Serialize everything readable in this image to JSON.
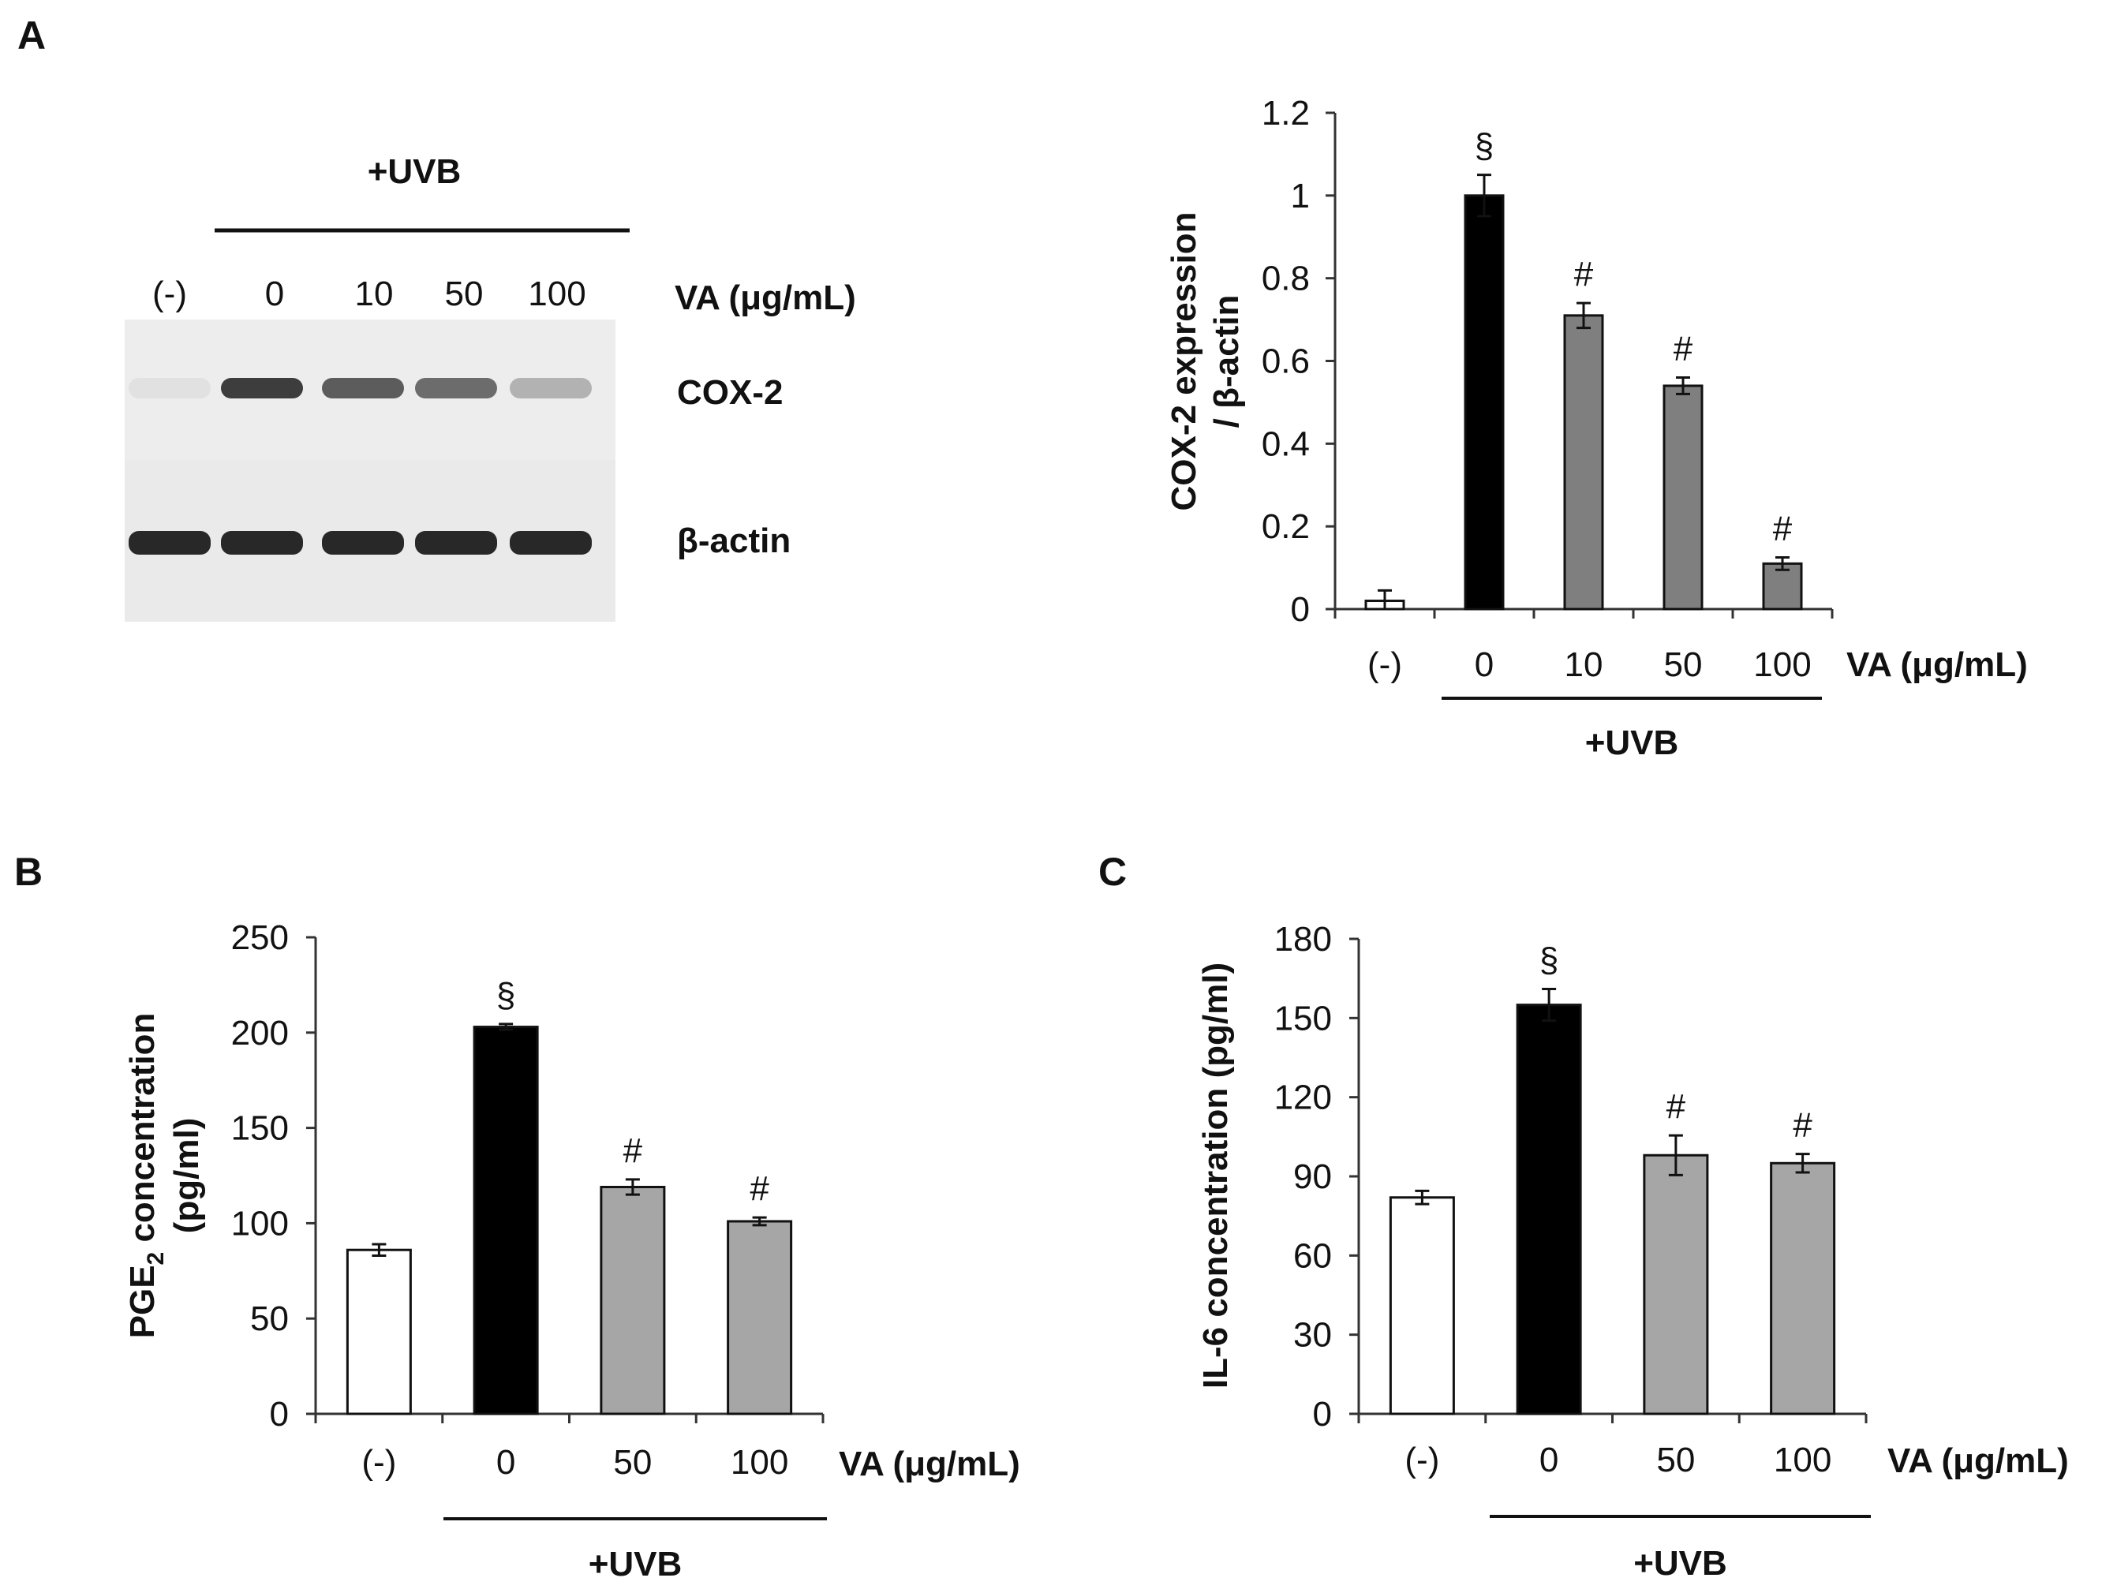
{
  "panel_a": {
    "letter": "A",
    "blot": {
      "treatment_label": "+UVB",
      "lane_labels": [
        "(-)",
        "0",
        "10",
        "50",
        "100"
      ],
      "dose_label": "VA (μg/mL)",
      "rows": [
        {
          "label": "COX-2",
          "intensities": [
            0.05,
            0.85,
            0.7,
            0.62,
            0.28
          ]
        },
        {
          "label": "β-actin",
          "intensities": [
            0.95,
            0.95,
            0.95,
            0.95,
            0.95
          ]
        }
      ]
    }
  },
  "panel_b": {
    "letter": "B"
  },
  "panel_c": {
    "letter": "C"
  },
  "colors": {
    "control": "#ffffff",
    "uvb": "#000000",
    "treated_dark": "#7f7f7f",
    "treated_light": "#a6a6a6",
    "axis": "#333333"
  },
  "chart_data": [
    {
      "type": "bar",
      "panel": "A",
      "categories": [
        "(-)",
        "0",
        "10",
        "50",
        "100"
      ],
      "values": [
        0.02,
        1.0,
        0.71,
        0.54,
        0.11
      ],
      "errors": [
        0.025,
        0.05,
        0.03,
        0.02,
        0.015
      ],
      "annotations": [
        "",
        "§",
        "#",
        "#",
        "#"
      ],
      "bar_colors": [
        "control",
        "uvb",
        "treated_dark",
        "treated_dark",
        "treated_dark"
      ],
      "ylabel_lines": [
        "COX-2 expression",
        "/ β-actin"
      ],
      "xlabel": "VA (μg/mL)",
      "group_label": "+UVB",
      "ylim": [
        0,
        1.2
      ],
      "yticks": [
        "0",
        "0.2",
        "0.4",
        "0.6",
        "0.8",
        "1",
        "1.2"
      ],
      "ytick_values": [
        0,
        0.2,
        0.4,
        0.6,
        0.8,
        1.0,
        1.2
      ],
      "grid": false
    },
    {
      "type": "bar",
      "panel": "B",
      "categories": [
        "(-)",
        "0",
        "50",
        "100"
      ],
      "values": [
        86,
        203,
        119,
        101
      ],
      "errors": [
        3,
        1.5,
        4,
        2
      ],
      "annotations": [
        "",
        "§",
        "#",
        "#"
      ],
      "bar_colors": [
        "control",
        "uvb",
        "treated_light",
        "treated_light"
      ],
      "ylabel_lines": [
        "PGE",
        "2",
        " concentration",
        "(pg/ml)"
      ],
      "xlabel": "VA (μg/mL)",
      "group_label": "+UVB",
      "ylim": [
        0,
        250
      ],
      "yticks": [
        "0",
        "50",
        "100",
        "150",
        "200",
        "250"
      ],
      "ytick_values": [
        0,
        50,
        100,
        150,
        200,
        250
      ],
      "grid": false
    },
    {
      "type": "bar",
      "panel": "C",
      "categories": [
        "(-)",
        "0",
        "50",
        "100"
      ],
      "values": [
        82,
        155,
        98,
        95
      ],
      "errors": [
        2.5,
        6,
        7.5,
        3.5
      ],
      "annotations": [
        "",
        "§",
        "#",
        "#"
      ],
      "bar_colors": [
        "control",
        "uvb",
        "treated_light",
        "treated_light"
      ],
      "ylabel_lines": [
        "IL-6  concentration (pg/ml)"
      ],
      "xlabel": "VA (μg/mL)",
      "group_label": "+UVB",
      "ylim": [
        0,
        180
      ],
      "yticks": [
        "0",
        "30",
        "60",
        "90",
        "120",
        "150",
        "180"
      ],
      "ytick_values": [
        0,
        30,
        60,
        90,
        120,
        150,
        180
      ],
      "grid": false
    }
  ]
}
